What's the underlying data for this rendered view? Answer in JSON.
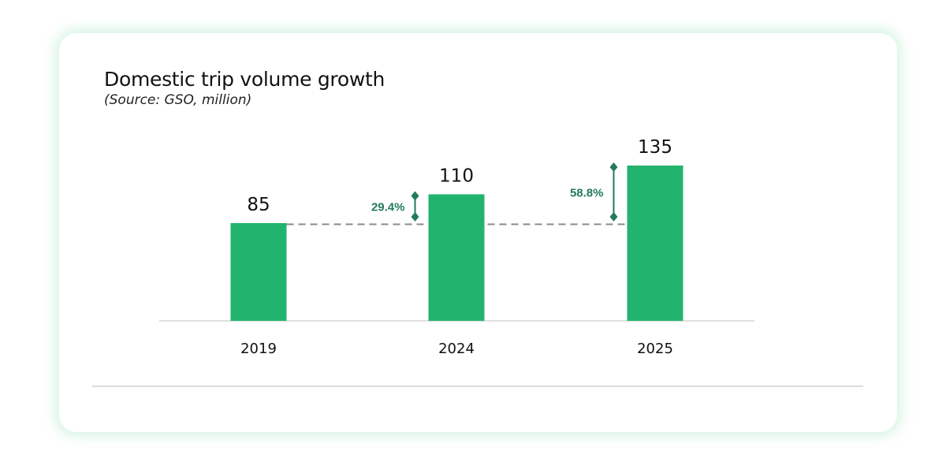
{
  "chart_data": {
    "type": "bar",
    "title": "Domestic trip volume growth",
    "subtitle": "(Source: GSO, million)",
    "categories": [
      "2019",
      "2024",
      "2025"
    ],
    "values": [
      85,
      110,
      135
    ],
    "ylim": [
      0,
      135
    ],
    "grid": false,
    "reference_line": {
      "value": 85,
      "style": "dashed"
    },
    "annotations": [
      {
        "category": "2024",
        "label": "29.4%",
        "from": 85,
        "to": 110
      },
      {
        "category": "2025",
        "label": "58.8%",
        "from": 85,
        "to": 135
      }
    ],
    "colors": {
      "bar": "#22b46e",
      "annotation": "#247a61",
      "reference_line": "#8a8a8a",
      "card_glow": "#bfeccf"
    }
  }
}
